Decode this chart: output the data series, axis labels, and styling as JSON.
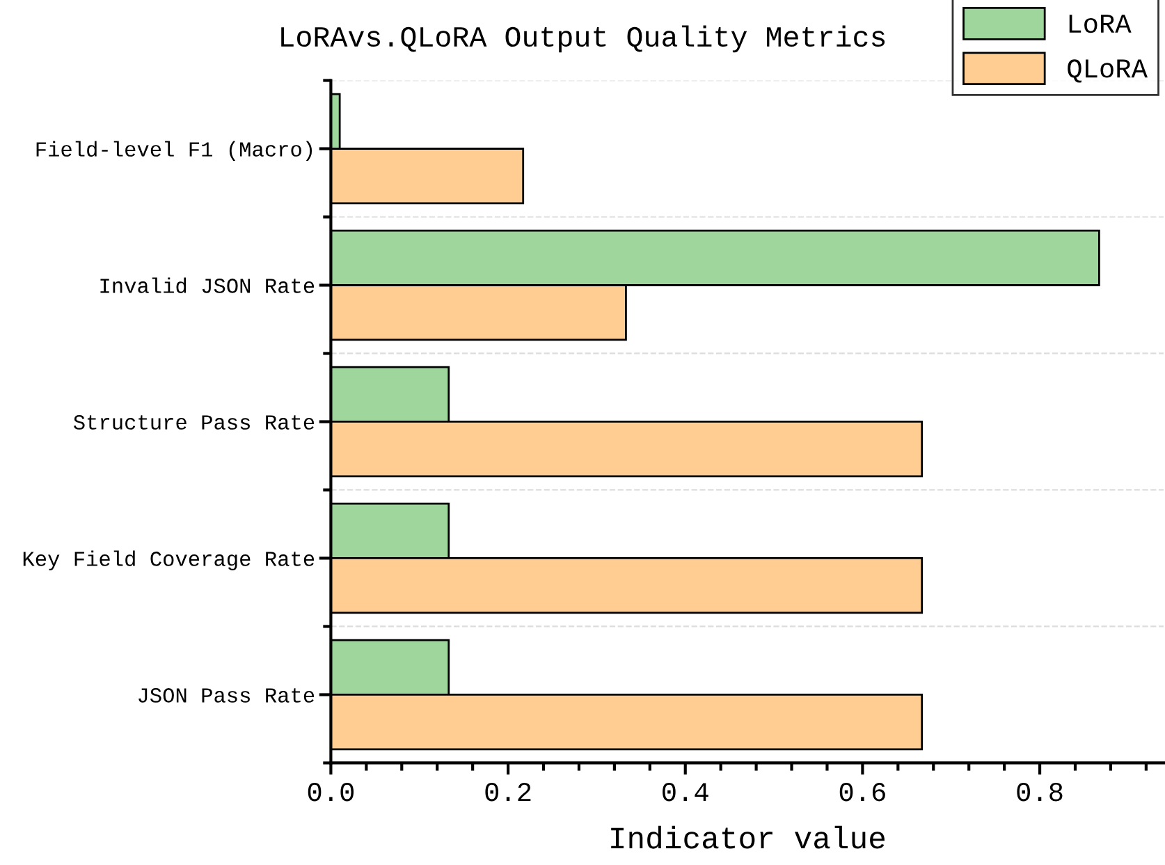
{
  "chart_data": {
    "type": "bar",
    "orientation": "horizontal",
    "title": "LoRAvs.QLoRA Output Quality Metrics",
    "xlabel": "Indicator value",
    "categories": [
      "Field-level F1 (Macro)",
      "Invalid JSON Rate",
      "Structure Pass Rate",
      "Key Field Coverage Rate",
      "JSON Pass Rate"
    ],
    "series": [
      {
        "name": "LoRA",
        "color": "#9ed69b",
        "values": [
          0.01,
          0.867,
          0.133,
          0.133,
          0.133
        ]
      },
      {
        "name": "QLoRA",
        "color": "#ffcc92",
        "values": [
          0.217,
          0.333,
          0.667,
          0.667,
          0.667
        ]
      }
    ],
    "xlim": [
      0,
      0.94
    ],
    "xticks": [
      {
        "value": 0,
        "label": "0.0"
      },
      0.2,
      0.4,
      0.6,
      0.8
    ],
    "grid": "y",
    "legend": "top right"
  }
}
